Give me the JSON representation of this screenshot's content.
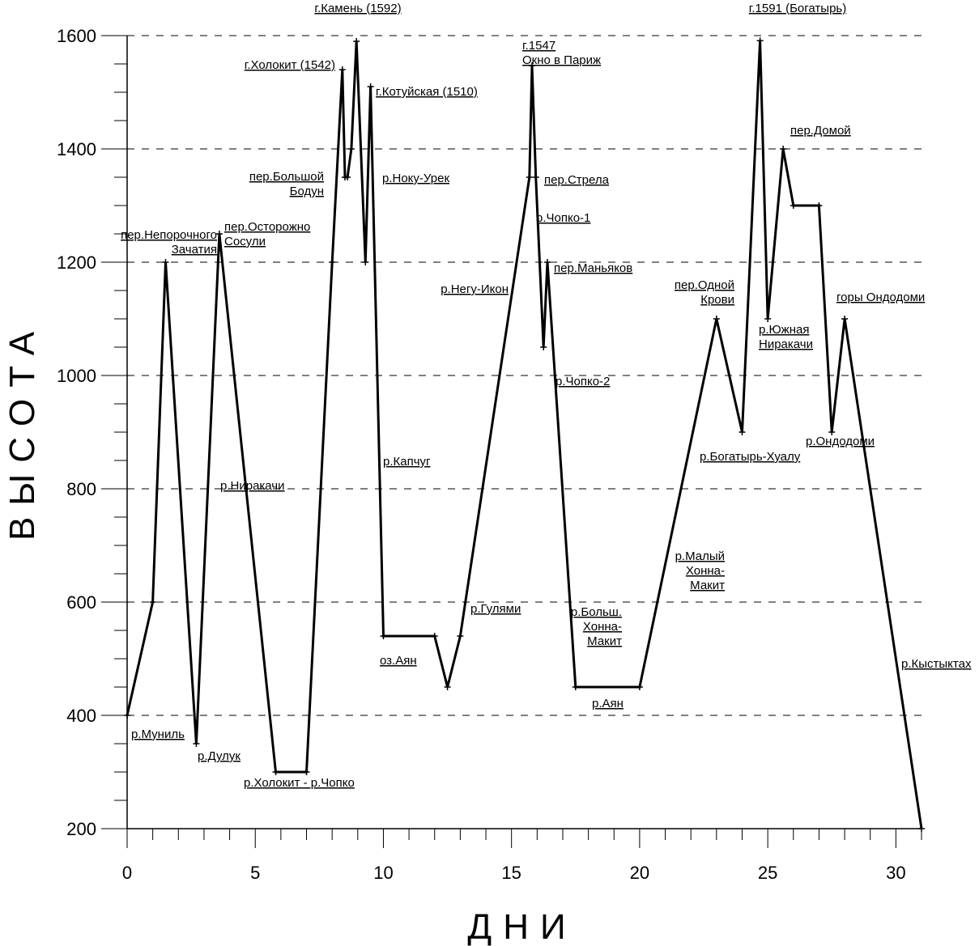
{
  "chart_data": {
    "type": "line",
    "xlabel": "ДНИ",
    "ylabel": "ВЫСОТА",
    "xlim": [
      0,
      31
    ],
    "ylim": [
      200,
      1600
    ],
    "xticks": [
      0,
      5,
      10,
      15,
      20,
      25,
      30
    ],
    "yticks": [
      200,
      400,
      600,
      800,
      1000,
      1200,
      1400,
      1600
    ],
    "grid": "horizontal dashed",
    "series": [
      {
        "color": "#000000",
        "points": [
          [
            0,
            400
          ],
          [
            1,
            600
          ],
          [
            1.5,
            1200
          ],
          [
            2.7,
            350
          ],
          [
            3.6,
            1250
          ],
          [
            5.8,
            300
          ],
          [
            7,
            300
          ],
          [
            8,
            1200
          ],
          [
            8.4,
            1540
          ],
          [
            8.5,
            1350
          ],
          [
            8.6,
            1350
          ],
          [
            8.75,
            1400
          ],
          [
            8.95,
            1590
          ],
          [
            9.3,
            1200
          ],
          [
            9.5,
            1510
          ],
          [
            10,
            540
          ],
          [
            12,
            540
          ],
          [
            12.5,
            450
          ],
          [
            13,
            540
          ],
          [
            15.7,
            1350
          ],
          [
            15.8,
            1547
          ],
          [
            15.95,
            1350
          ],
          [
            16.25,
            1050
          ],
          [
            16.4,
            1200
          ],
          [
            17.5,
            450
          ],
          [
            20,
            450
          ],
          [
            23,
            1100
          ],
          [
            24,
            900
          ],
          [
            24.7,
            1591
          ],
          [
            25,
            1100
          ],
          [
            25.6,
            1400
          ],
          [
            26,
            1300
          ],
          [
            27,
            1300
          ],
          [
            27.5,
            900
          ],
          [
            28,
            1100
          ],
          [
            31,
            200
          ]
        ]
      }
    ],
    "annotations": [
      {
        "lines": [
          "г.Камень (1592)"
        ],
        "x": 9,
        "y": 1592
      },
      {
        "lines": [
          "г.1591 (Богатырь)"
        ],
        "x": 24.7,
        "y": 1591
      },
      {
        "lines": [
          "г.1547",
          "Окно в Париж"
        ],
        "x": 15.8,
        "y": 1547
      },
      {
        "lines": [
          "г.Холокит (1542)"
        ],
        "x": 8.4,
        "y": 1542
      },
      {
        "lines": [
          "г.Котуйская (1510)"
        ],
        "x": 9.5,
        "y": 1510
      },
      {
        "lines": [
          "пер.Домой"
        ],
        "x": 25.6,
        "y": 1400
      },
      {
        "lines": [
          "пер.Большой",
          "Бодун"
        ],
        "x": 8.5,
        "y": 1350
      },
      {
        "lines": [
          "р.Ноку-Урек"
        ],
        "x": 9.5,
        "y": 1350
      },
      {
        "lines": [
          "пер.Стрела"
        ],
        "x": 15.8,
        "y": 1350
      },
      {
        "lines": [
          "р.Чопко-1"
        ],
        "x": 15.95,
        "y": 1300
      },
      {
        "lines": [
          "пер.Непорочного",
          "Зачатия"
        ],
        "x": 1.5,
        "y": 1200
      },
      {
        "lines": [
          "пер.Осторожно",
          "Сосули"
        ],
        "x": 3.6,
        "y": 1250
      },
      {
        "lines": [
          "пер.Маньяков"
        ],
        "x": 16.4,
        "y": 1200
      },
      {
        "lines": [
          "р.Негу-Икон"
        ],
        "x": 14.5,
        "y": 1150
      },
      {
        "lines": [
          "пер.Одной",
          "Крови"
        ],
        "x": 23,
        "y": 1100
      },
      {
        "lines": [
          "горы Ондодоми"
        ],
        "x": 28,
        "y": 1100
      },
      {
        "lines": [
          "р.Южная",
          "Ниракачи"
        ],
        "x": 25,
        "y": 1100
      },
      {
        "lines": [
          "р.Чопко-2"
        ],
        "x": 16.8,
        "y": 1000
      },
      {
        "lines": [
          "р.Ондодоми"
        ],
        "x": 27.5,
        "y": 900
      },
      {
        "lines": [
          "р.Богатырь-Хуалу"
        ],
        "x": 24,
        "y": 900
      },
      {
        "lines": [
          "р.Капчуг"
        ],
        "x": 10,
        "y": 800
      },
      {
        "lines": [
          "р.Ниракачи"
        ],
        "x": 4.5,
        "y": 800
      },
      {
        "lines": [
          "р.Малый",
          "Хонна-",
          "Макит"
        ],
        "x": 21.5,
        "y": 650
      },
      {
        "lines": [
          "р.Гулями"
        ],
        "x": 13,
        "y": 600
      },
      {
        "lines": [
          "р.Больш.",
          "Хонна-",
          "Макит"
        ],
        "x": 17.5,
        "y": 570
      },
      {
        "lines": [
          "оз.Аян"
        ],
        "x": 10,
        "y": 540
      },
      {
        "lines": [
          "р.Кыстыктах"
        ],
        "x": 30,
        "y": 500
      },
      {
        "lines": [
          "р.Аян"
        ],
        "x": 18.5,
        "y": 450
      },
      {
        "lines": [
          "р.Муниль"
        ],
        "x": 0,
        "y": 400
      },
      {
        "lines": [
          "р.Дулук"
        ],
        "x": 2.7,
        "y": 350
      },
      {
        "lines": [
          "р.Холокит - р.Чопко"
        ],
        "x": 6.5,
        "y": 300
      }
    ]
  }
}
